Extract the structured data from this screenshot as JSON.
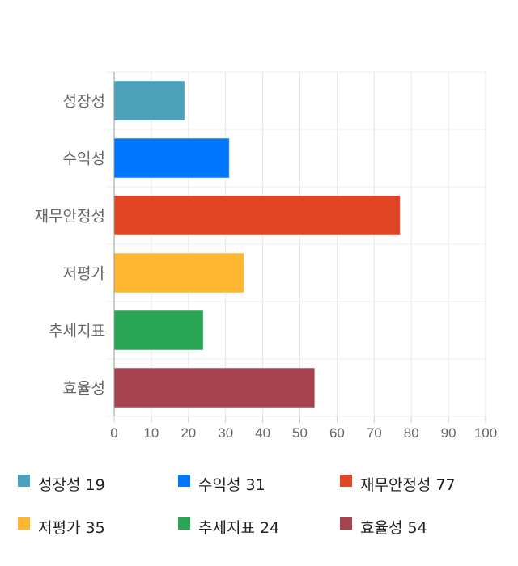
{
  "chart_data": {
    "type": "bar",
    "orientation": "horizontal",
    "categories": [
      "성장성",
      "수익성",
      "재무안정성",
      "저평가",
      "추세지표",
      "효율성"
    ],
    "values": [
      19,
      31,
      77,
      35,
      24,
      54
    ],
    "colors": [
      "#4BA1BA",
      "#0077FF",
      "#E04524",
      "#FFB732",
      "#28A555",
      "#A6434F"
    ],
    "xlim": [
      0,
      100
    ],
    "xticks": [
      0,
      10,
      20,
      30,
      40,
      50,
      60,
      70,
      80,
      90,
      100
    ],
    "grid": true,
    "legend_position": "bottom"
  },
  "legend": [
    {
      "label": "성장성 19"
    },
    {
      "label": "수익성 31"
    },
    {
      "label": "재무안정성 77"
    },
    {
      "label": "저평가 35"
    },
    {
      "label": "추세지표 24"
    },
    {
      "label": "효율성 54"
    }
  ]
}
